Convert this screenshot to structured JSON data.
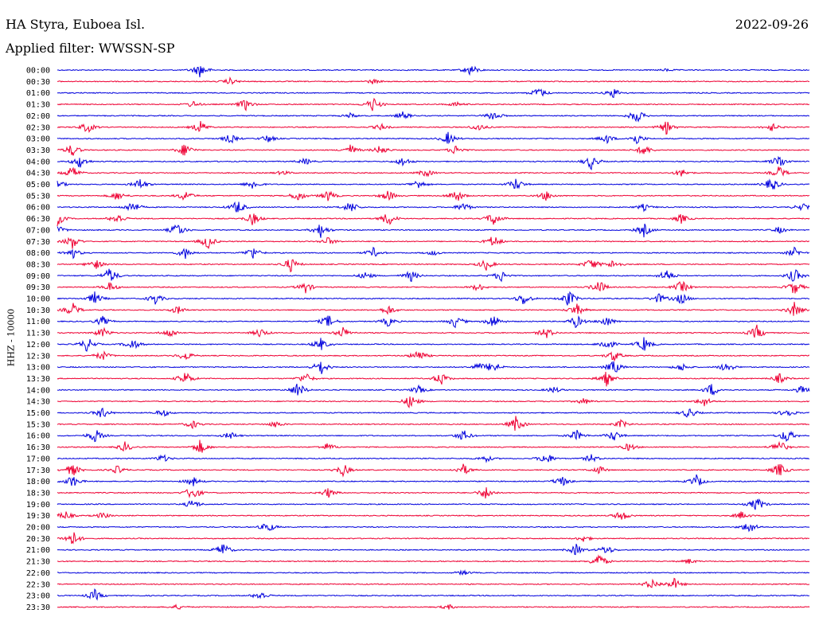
{
  "header": {
    "station": "HA Styra, Euboea Isl.",
    "date": "2022-09-26",
    "filter": "Applied filter: WWSSN-SP"
  },
  "chart_data": {
    "type": "line",
    "title": "HA Styra, Euboea Isl.",
    "ylabel": "HHZ - 10000",
    "grid": false,
    "series_colors": [
      "#0000dd",
      "#ee0033"
    ],
    "rows": [
      {
        "label": "00:00",
        "events": [
          [
            0.19,
            0.9
          ],
          [
            0.55,
            0.75
          ],
          [
            0.81,
            0.15
          ]
        ]
      },
      {
        "label": "00:30",
        "events": [
          [
            0.23,
            0.4
          ],
          [
            0.42,
            0.3
          ]
        ]
      },
      {
        "label": "01:00",
        "events": [
          [
            0.64,
            0.7
          ],
          [
            0.74,
            0.6
          ]
        ]
      },
      {
        "label": "01:30",
        "events": [
          [
            0.18,
            0.4
          ],
          [
            0.25,
            0.7
          ],
          [
            0.42,
            0.9
          ],
          [
            0.53,
            0.3
          ]
        ]
      },
      {
        "label": "02:00",
        "events": [
          [
            0.39,
            0.3
          ],
          [
            0.46,
            0.5
          ],
          [
            0.58,
            0.7
          ],
          [
            0.77,
            0.9
          ]
        ]
      },
      {
        "label": "02:30",
        "events": [
          [
            0.04,
            0.7
          ],
          [
            0.19,
            0.8
          ],
          [
            0.43,
            0.4
          ],
          [
            0.56,
            0.5
          ],
          [
            0.81,
            0.8
          ],
          [
            0.95,
            0.5
          ]
        ]
      },
      {
        "label": "03:00",
        "events": [
          [
            0.23,
            0.6
          ],
          [
            0.28,
            0.5
          ],
          [
            0.52,
            0.8
          ],
          [
            0.73,
            0.6
          ],
          [
            0.77,
            0.7
          ]
        ]
      },
      {
        "label": "03:30",
        "events": [
          [
            0.02,
            0.8
          ],
          [
            0.17,
            0.9
          ],
          [
            0.39,
            0.7
          ],
          [
            0.43,
            0.6
          ],
          [
            0.53,
            0.6
          ],
          [
            0.78,
            0.7
          ]
        ]
      },
      {
        "label": "04:00",
        "events": [
          [
            0.03,
            0.8
          ],
          [
            0.33,
            0.4
          ],
          [
            0.46,
            0.6
          ],
          [
            0.71,
            0.9
          ],
          [
            0.96,
            0.9
          ]
        ]
      },
      {
        "label": "04:30",
        "events": [
          [
            0.02,
            0.8
          ],
          [
            0.3,
            0.3
          ],
          [
            0.49,
            0.5
          ],
          [
            0.83,
            0.5
          ],
          [
            0.96,
            0.8
          ]
        ]
      },
      {
        "label": "05:00",
        "events": [
          [
            0.0,
            0.6
          ],
          [
            0.11,
            0.7
          ],
          [
            0.26,
            0.6
          ],
          [
            0.48,
            0.6
          ],
          [
            0.61,
            0.8
          ],
          [
            0.95,
            0.9
          ]
        ]
      },
      {
        "label": "05:30",
        "events": [
          [
            0.08,
            0.6
          ],
          [
            0.17,
            0.7
          ],
          [
            0.32,
            0.7
          ],
          [
            0.36,
            0.7
          ],
          [
            0.44,
            0.7
          ],
          [
            0.53,
            0.9
          ],
          [
            0.65,
            0.6
          ]
        ]
      },
      {
        "label": "06:00",
        "events": [
          [
            0.1,
            0.8
          ],
          [
            0.24,
            0.9
          ],
          [
            0.39,
            0.8
          ],
          [
            0.54,
            0.6
          ],
          [
            0.78,
            0.4
          ],
          [
            0.99,
            0.5
          ]
        ]
      },
      {
        "label": "06:30",
        "events": [
          [
            0.0,
            0.9
          ],
          [
            0.08,
            0.7
          ],
          [
            0.26,
            0.8
          ],
          [
            0.44,
            0.9
          ],
          [
            0.58,
            0.9
          ],
          [
            0.83,
            0.6
          ]
        ]
      },
      {
        "label": "07:00",
        "events": [
          [
            0.0,
            0.6
          ],
          [
            0.16,
            0.9
          ],
          [
            0.35,
            0.9
          ],
          [
            0.78,
            0.8
          ],
          [
            0.96,
            0.4
          ]
        ]
      },
      {
        "label": "07:30",
        "events": [
          [
            0.02,
            0.9
          ],
          [
            0.2,
            0.9
          ],
          [
            0.36,
            0.5
          ],
          [
            0.58,
            0.8
          ]
        ]
      },
      {
        "label": "08:00",
        "events": [
          [
            0.02,
            0.7
          ],
          [
            0.17,
            0.7
          ],
          [
            0.26,
            0.8
          ],
          [
            0.42,
            0.6
          ],
          [
            0.5,
            0.3
          ],
          [
            0.98,
            0.6
          ]
        ]
      },
      {
        "label": "08:30",
        "events": [
          [
            0.05,
            0.7
          ],
          [
            0.31,
            0.9
          ],
          [
            0.57,
            0.7
          ],
          [
            0.71,
            0.8
          ],
          [
            0.74,
            0.6
          ]
        ]
      },
      {
        "label": "09:00",
        "events": [
          [
            0.07,
            1.0
          ],
          [
            0.41,
            0.5
          ],
          [
            0.47,
            0.7
          ],
          [
            0.59,
            0.7
          ],
          [
            0.81,
            0.8
          ],
          [
            0.98,
            0.9
          ]
        ]
      },
      {
        "label": "09:30",
        "events": [
          [
            0.07,
            0.6
          ],
          [
            0.33,
            0.7
          ],
          [
            0.56,
            0.5
          ],
          [
            0.72,
            0.9
          ],
          [
            0.83,
            0.8
          ],
          [
            0.98,
            0.9
          ]
        ]
      },
      {
        "label": "10:00",
        "events": [
          [
            0.05,
            0.8
          ],
          [
            0.13,
            0.7
          ],
          [
            0.62,
            0.8
          ],
          [
            0.68,
            1.0
          ],
          [
            0.8,
            0.6
          ],
          [
            0.83,
            0.7
          ]
        ]
      },
      {
        "label": "10:30",
        "events": [
          [
            0.02,
            0.9
          ],
          [
            0.16,
            0.5
          ],
          [
            0.44,
            0.6
          ],
          [
            0.69,
            0.8
          ],
          [
            0.98,
            0.9
          ]
        ]
      },
      {
        "label": "11:00",
        "events": [
          [
            0.06,
            0.6
          ],
          [
            0.36,
            0.8
          ],
          [
            0.44,
            0.6
          ],
          [
            0.53,
            0.8
          ],
          [
            0.58,
            0.9
          ],
          [
            0.69,
            0.8
          ],
          [
            0.73,
            0.7
          ]
        ]
      },
      {
        "label": "11:30",
        "events": [
          [
            0.06,
            0.7
          ],
          [
            0.15,
            0.6
          ],
          [
            0.27,
            0.6
          ],
          [
            0.38,
            0.7
          ],
          [
            0.65,
            0.7
          ],
          [
            0.93,
            0.9
          ]
        ]
      },
      {
        "label": "12:00",
        "events": [
          [
            0.04,
            0.9
          ],
          [
            0.1,
            0.7
          ],
          [
            0.35,
            0.8
          ],
          [
            0.73,
            0.8
          ],
          [
            0.78,
            0.9
          ]
        ]
      },
      {
        "label": "12:30",
        "events": [
          [
            0.06,
            0.6
          ],
          [
            0.17,
            0.6
          ],
          [
            0.48,
            0.8
          ],
          [
            0.74,
            0.7
          ]
        ]
      },
      {
        "label": "13:00",
        "events": [
          [
            0.35,
            1.0
          ],
          [
            0.56,
            0.5
          ],
          [
            0.58,
            0.8
          ],
          [
            0.74,
            0.9
          ],
          [
            0.83,
            0.5
          ],
          [
            0.89,
            0.7
          ]
        ]
      },
      {
        "label": "13:30",
        "events": [
          [
            0.17,
            0.9
          ],
          [
            0.33,
            0.7
          ],
          [
            0.51,
            0.8
          ],
          [
            0.73,
            0.9
          ],
          [
            0.96,
            0.6
          ]
        ]
      },
      {
        "label": "14:00",
        "events": [
          [
            0.32,
            1.0
          ],
          [
            0.48,
            0.5
          ],
          [
            0.66,
            0.4
          ],
          [
            0.87,
            0.8
          ],
          [
            0.99,
            0.5
          ]
        ]
      },
      {
        "label": "14:30",
        "events": [
          [
            0.47,
            0.9
          ],
          [
            0.7,
            0.4
          ],
          [
            0.86,
            0.6
          ]
        ]
      },
      {
        "label": "15:00",
        "events": [
          [
            0.06,
            0.7
          ],
          [
            0.14,
            0.5
          ],
          [
            0.84,
            0.7
          ],
          [
            0.97,
            0.6
          ]
        ]
      },
      {
        "label": "15:30",
        "events": [
          [
            0.18,
            0.5
          ],
          [
            0.29,
            0.4
          ],
          [
            0.61,
            1.0
          ],
          [
            0.75,
            0.5
          ]
        ]
      },
      {
        "label": "16:00",
        "events": [
          [
            0.05,
            0.9
          ],
          [
            0.23,
            0.5
          ],
          [
            0.54,
            0.7
          ],
          [
            0.69,
            0.7
          ],
          [
            0.74,
            0.7
          ],
          [
            0.97,
            0.9
          ]
        ]
      },
      {
        "label": "16:30",
        "events": [
          [
            0.09,
            0.6
          ],
          [
            0.19,
            0.9
          ],
          [
            0.36,
            0.5
          ],
          [
            0.76,
            0.5
          ],
          [
            0.96,
            0.9
          ]
        ]
      },
      {
        "label": "17:00",
        "events": [
          [
            0.14,
            0.5
          ],
          [
            0.57,
            0.4
          ],
          [
            0.65,
            0.8
          ],
          [
            0.71,
            0.5
          ]
        ]
      },
      {
        "label": "17:30",
        "events": [
          [
            0.02,
            0.8
          ],
          [
            0.08,
            0.5
          ],
          [
            0.38,
            0.8
          ],
          [
            0.54,
            0.7
          ],
          [
            0.72,
            0.5
          ],
          [
            0.96,
            0.9
          ]
        ]
      },
      {
        "label": "18:00",
        "events": [
          [
            0.02,
            0.8
          ],
          [
            0.18,
            0.6
          ],
          [
            0.67,
            0.7
          ],
          [
            0.85,
            0.8
          ]
        ]
      },
      {
        "label": "18:30",
        "events": [
          [
            0.18,
            1.0
          ],
          [
            0.36,
            0.6
          ],
          [
            0.57,
            0.8
          ]
        ]
      },
      {
        "label": "19:00",
        "events": [
          [
            0.18,
            0.6
          ],
          [
            0.93,
            0.9
          ]
        ]
      },
      {
        "label": "19:30",
        "events": [
          [
            0.01,
            0.6
          ],
          [
            0.06,
            0.4
          ],
          [
            0.75,
            0.7
          ],
          [
            0.91,
            0.5
          ]
        ]
      },
      {
        "label": "20:00",
        "events": [
          [
            0.28,
            0.7
          ],
          [
            0.92,
            0.8
          ]
        ]
      },
      {
        "label": "20:30",
        "events": [
          [
            0.02,
            1.0
          ],
          [
            0.7,
            0.4
          ]
        ]
      },
      {
        "label": "21:00",
        "events": [
          [
            0.22,
            0.9
          ],
          [
            0.69,
            0.7
          ],
          [
            0.73,
            0.6
          ]
        ]
      },
      {
        "label": "21:30",
        "events": [
          [
            0.72,
            1.0
          ],
          [
            0.84,
            0.3
          ]
        ]
      },
      {
        "label": "22:00",
        "events": [
          [
            0.54,
            0.3
          ]
        ]
      },
      {
        "label": "22:30",
        "events": [
          [
            0.79,
            0.7
          ],
          [
            0.82,
            0.7
          ]
        ]
      },
      {
        "label": "23:00",
        "events": [
          [
            0.05,
            0.7
          ],
          [
            0.27,
            0.6
          ]
        ]
      },
      {
        "label": "23:30",
        "events": [
          [
            0.16,
            0.3
          ],
          [
            0.52,
            0.3
          ]
        ]
      }
    ]
  }
}
